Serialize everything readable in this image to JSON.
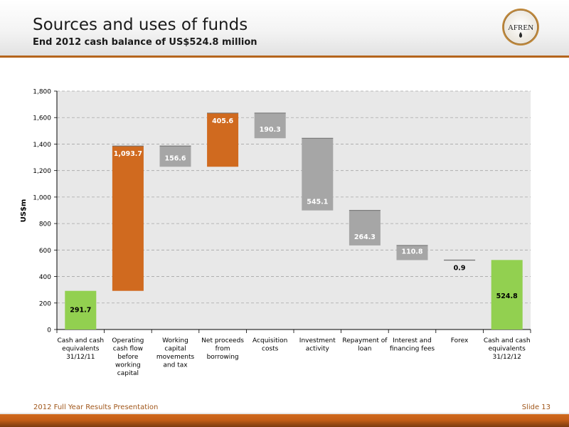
{
  "header": {
    "title": "Sources and uses of funds",
    "subtitle": "End 2012 cash balance of US$524.8 million",
    "logo_text": "AFREN"
  },
  "footer": {
    "left": "2012 Full Year Results Presentation",
    "right": "Slide 13"
  },
  "colors": {
    "accent": "#b5651d",
    "orange_bar": "#d06a1f",
    "grey_bar": "#a6a6a6",
    "green_bar": "#92d050",
    "plot_bg": "#e8e8e8",
    "grid": "#a6a6a6"
  },
  "chart_data": {
    "type": "bar",
    "variant": "waterfall",
    "ylabel": "US$m",
    "ylim": [
      0,
      1800
    ],
    "yticks": [
      0,
      200,
      400,
      600,
      800,
      1000,
      1200,
      1400,
      1600,
      1800
    ],
    "ytick_labels": [
      "0",
      "200",
      "400",
      "600",
      "800",
      "1,000",
      "1,200",
      "1,400",
      "1,600",
      "1,800"
    ],
    "grid": true,
    "categories": [
      [
        "Cash and cash",
        "equivalents",
        "31/12/11"
      ],
      [
        "Operating",
        "cash flow",
        "before",
        "working",
        "capital"
      ],
      [
        "Working",
        "capital",
        "movements",
        "and tax"
      ],
      [
        "Net proceeds",
        "from",
        "borrowing"
      ],
      [
        "Acquisition",
        "costs"
      ],
      [
        "Investment",
        "activity"
      ],
      [
        "Repayment of",
        "loan"
      ],
      [
        "Interest and",
        "financing fees"
      ],
      [
        "Forex"
      ],
      [
        "Cash and cash",
        "equivalents",
        "31/12/12"
      ]
    ],
    "bars": [
      {
        "base": 0,
        "top": 291.7,
        "label": "291.7",
        "kind": "total",
        "color": "#92d050"
      },
      {
        "base": 291.7,
        "top": 1385.4,
        "label": "1,093.7",
        "kind": "increase",
        "color": "#d06a1f"
      },
      {
        "base": 1228.8,
        "top": 1385.4,
        "label": "156.6",
        "kind": "decrease",
        "color": "#a6a6a6"
      },
      {
        "base": 1228.8,
        "top": 1634.4,
        "label": "405.6",
        "kind": "increase",
        "color": "#d06a1f"
      },
      {
        "base": 1444.1,
        "top": 1634.4,
        "label": "190.3",
        "kind": "decrease",
        "color": "#a6a6a6"
      },
      {
        "base": 899.0,
        "top": 1444.1,
        "label": "545.1",
        "kind": "decrease",
        "color": "#a6a6a6"
      },
      {
        "base": 634.7,
        "top": 899.0,
        "label": "264.3",
        "kind": "decrease",
        "color": "#a6a6a6"
      },
      {
        "base": 523.9,
        "top": 634.7,
        "label": "110.8",
        "kind": "decrease",
        "color": "#a6a6a6"
      },
      {
        "base": 523.9,
        "top": 524.8,
        "label": "0.9",
        "kind": "increase",
        "color": "#a6a6a6"
      },
      {
        "base": 0,
        "top": 524.8,
        "label": "524.8",
        "kind": "total",
        "color": "#92d050"
      }
    ]
  }
}
